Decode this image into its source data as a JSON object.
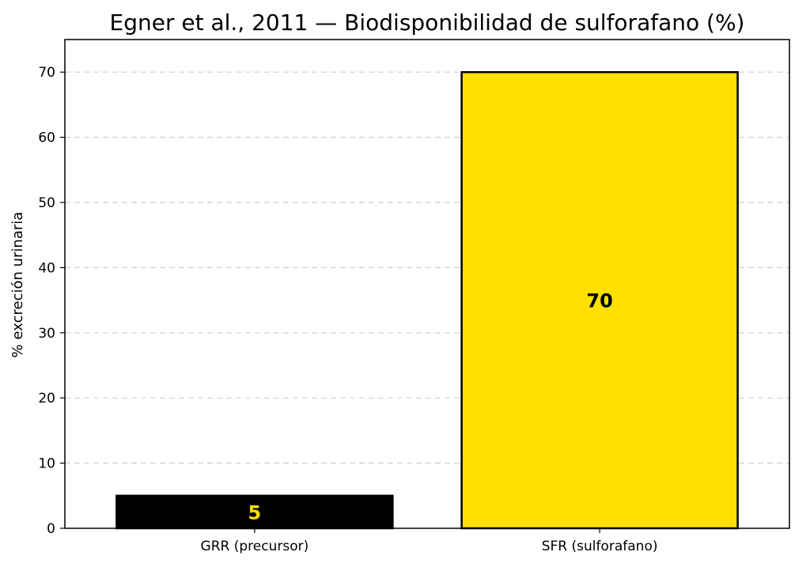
{
  "chart_data": {
    "type": "bar",
    "title": "Egner et al., 2011 — Biodisponibilidad de sulforafano (%)",
    "xlabel": "",
    "ylabel": "% excreción urinaria",
    "categories": [
      "GRR (precursor)",
      "SFR (sulforafano)"
    ],
    "values": [
      5,
      70
    ],
    "data_labels": [
      "5",
      "70"
    ],
    "bar_colors": [
      "#000000",
      "#ffe000"
    ],
    "label_colors": [
      "#ffe000",
      "#000000"
    ],
    "ylim": [
      0,
      75
    ],
    "yticks": [
      0,
      10,
      20,
      30,
      40,
      50,
      60,
      70
    ],
    "grid": "horizontal-dashed",
    "legend": "none"
  }
}
